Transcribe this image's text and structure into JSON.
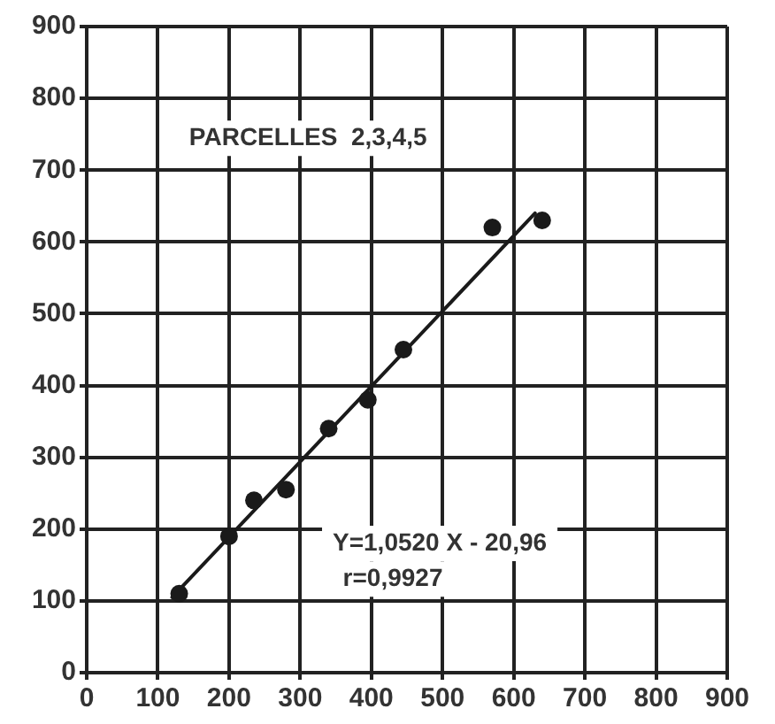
{
  "chart_data": {
    "type": "scatter",
    "annotations": [
      "PARCELLES  2,3,4,5",
      "Y=1,0520 X - 20,96",
      "r=0,9927"
    ],
    "xlim": [
      0,
      900
    ],
    "ylim": [
      0,
      900
    ],
    "xticks": [
      0,
      100,
      200,
      300,
      400,
      500,
      600,
      700,
      800,
      900
    ],
    "yticks": [
      0,
      100,
      200,
      300,
      400,
      500,
      600,
      700,
      800,
      900
    ],
    "grid": true,
    "legend": false,
    "marker": "circle",
    "series": [
      {
        "color": "#1a1a1a",
        "x": [
          130,
          200,
          235,
          280,
          340,
          395,
          445,
          570,
          640
        ],
        "values": [
          110,
          190,
          240,
          255,
          340,
          380,
          450,
          620,
          630
        ]
      },
      {
        "type": "line",
        "color": "#1a1a1a",
        "marker": "none",
        "line_style": "solid",
        "x": [
          120,
          630
        ],
        "values": [
          105,
          640
        ]
      }
    ]
  }
}
